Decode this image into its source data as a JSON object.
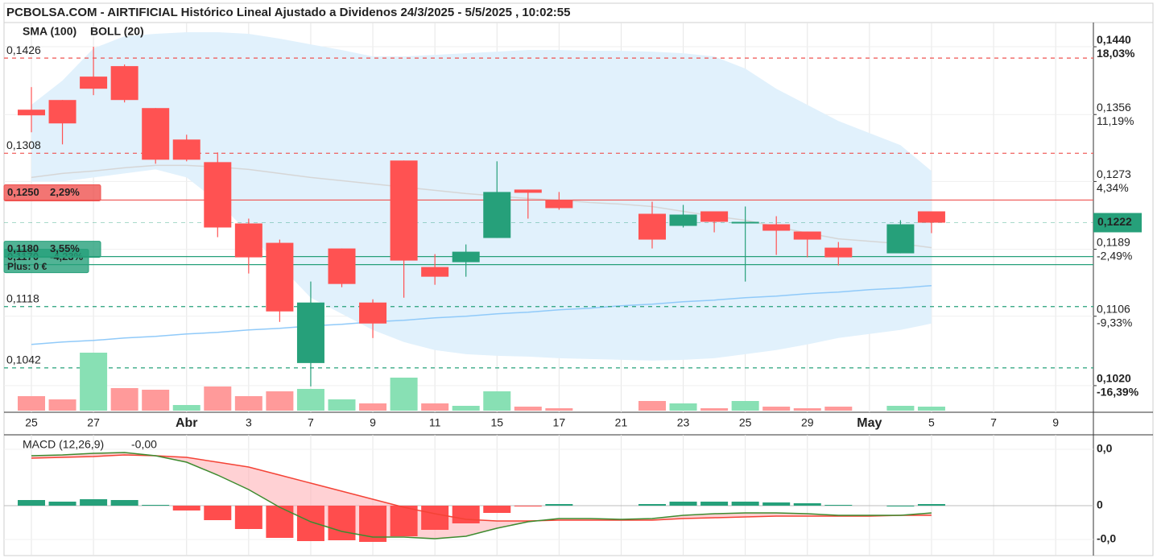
{
  "chart_data": [
    {
      "type": "candlestick",
      "title": "PCBOLSA.COM - AIRTIFICIAL Histórico Lineal Ajustado a Dividenos 24/3/2025 - 5/5/2025 , 10:02:55",
      "categories": [
        "25",
        null,
        "27",
        null,
        null,
        "Abr",
        null,
        "3",
        null,
        "7",
        null,
        "9",
        null,
        "11",
        null,
        "15",
        null,
        "17",
        null,
        "21",
        null,
        "23",
        null,
        "25",
        null,
        "29",
        null,
        "May",
        null,
        "5",
        null,
        "7",
        null,
        "9"
      ],
      "open": [
        0.1362,
        0.1374,
        0.1403,
        0.1416,
        0.1364,
        0.1325,
        0.1297,
        0.1221,
        0.1197,
        0.1048,
        0.119,
        0.1123,
        0.1299,
        0.1167,
        0.1173,
        0.1203,
        0.1263,
        0.125,
        null,
        null,
        0.1233,
        0.1218,
        0.1236,
        0.1221,
        0.122,
        0.1211,
        0.1191,
        null,
        0.1184,
        0.1236,
        null,
        null,
        null,
        null
      ],
      "high": [
        0.139,
        0.1374,
        0.144,
        0.1418,
        0.1364,
        0.1331,
        0.1309,
        0.1227,
        0.1201,
        0.1149,
        0.119,
        0.1127,
        0.1299,
        0.1183,
        0.1195,
        0.1298,
        0.1263,
        0.126,
        null,
        null,
        0.1248,
        0.1244,
        0.1236,
        0.1242,
        0.123,
        0.1211,
        0.1198,
        null,
        0.1225,
        0.1236,
        null,
        null,
        null,
        null
      ],
      "low": [
        0.1334,
        0.1319,
        0.138,
        0.1371,
        0.1295,
        0.1298,
        0.1204,
        0.1159,
        0.1099,
        0.1019,
        0.1142,
        0.1079,
        0.1129,
        0.1145,
        0.1155,
        0.1203,
        0.1227,
        0.1238,
        null,
        null,
        0.119,
        0.1216,
        0.121,
        0.1149,
        0.1182,
        0.1179,
        0.1169,
        null,
        0.1184,
        0.1209,
        null,
        null,
        null,
        null
      ],
      "close": [
        0.1355,
        0.1345,
        0.1388,
        0.1374,
        0.13,
        0.13,
        0.1216,
        0.1179,
        0.1112,
        0.1123,
        0.1146,
        0.1097,
        0.1175,
        0.1155,
        0.1186,
        0.126,
        0.1259,
        0.124,
        null,
        null,
        0.1201,
        0.1232,
        0.1223,
        0.1223,
        0.1212,
        0.1201,
        0.1179,
        null,
        0.122,
        0.1222,
        null,
        null,
        null,
        null
      ],
      "up_color": "#26a07a",
      "down_color": "#ff5252",
      "volume": {
        "values": [
          18,
          14,
          72,
          28,
          26,
          7,
          30,
          18,
          24,
          27,
          14,
          9,
          41,
          9,
          6,
          24,
          5,
          3,
          null,
          null,
          12,
          9,
          3,
          12,
          5,
          3,
          5,
          null,
          6,
          5,
          null,
          null,
          null,
          null
        ],
        "up_color": "#88e0b4",
        "down_color": "#ff9a9a"
      },
      "series": [
        {
          "name": "SMA (100)",
          "color": "#90caf9",
          "values": [
            0.1071,
            0.1074,
            0.1076,
            0.1079,
            0.1081,
            0.1084,
            0.1086,
            0.1089,
            0.1091,
            0.1094,
            0.1096,
            0.1099,
            0.1101,
            0.1104,
            0.1106,
            0.1109,
            0.1111,
            0.1114,
            0.1116,
            0.1119,
            0.1121,
            0.1124,
            0.1126,
            0.1129,
            0.1131,
            0.1134,
            0.1136,
            0.1139,
            0.1141,
            0.1144,
            null,
            null,
            null,
            null
          ]
        },
        {
          "name": "BOLL (20)",
          "color": "#d6d6d6",
          "fill": "#e1f1fc",
          "values": [
            0.1278,
            0.1283,
            0.1286,
            0.129,
            0.1293,
            0.1293,
            0.1291,
            0.1288,
            0.1283,
            0.1278,
            0.1274,
            0.127,
            0.1266,
            0.1262,
            0.1258,
            0.1255,
            0.1252,
            0.125,
            0.1247,
            0.1245,
            0.1242,
            0.1236,
            0.123,
            0.1225,
            0.1217,
            0.1209,
            0.1202,
            0.1199,
            0.1196,
            0.1191,
            null,
            null,
            null,
            null
          ],
          "upper": [
            0.1368,
            0.1398,
            0.1438,
            0.1453,
            0.1456,
            0.1458,
            0.1458,
            0.1456,
            0.145,
            0.1443,
            0.1436,
            0.1428,
            0.1428,
            0.143,
            0.1432,
            0.1434,
            0.1436,
            0.1436,
            0.1435,
            0.1435,
            0.1434,
            0.1432,
            0.1428,
            0.1413,
            0.1388,
            0.1368,
            0.1348,
            0.1333,
            0.1318,
            0.1286,
            null,
            null,
            null,
            null
          ],
          "lower": [
            0.1273,
            0.1273,
            0.1278,
            0.1283,
            0.1288,
            0.1278,
            0.1248,
            0.1209,
            0.1169,
            0.1129,
            0.1109,
            0.1089,
            0.1074,
            0.1064,
            0.1059,
            0.1057,
            0.1056,
            0.1054,
            0.1053,
            0.1052,
            0.1051,
            0.1052,
            0.1054,
            0.1059,
            0.1064,
            0.1071,
            0.1079,
            0.1084,
            0.1089,
            0.1097,
            null,
            null,
            null,
            null
          ]
        }
      ],
      "levels": [
        {
          "value": 0.1426,
          "label": "0,1426",
          "color": "#ef5350",
          "dash": true
        },
        {
          "value": 0.1308,
          "label": "0,1308",
          "color": "#ef5350",
          "dash": true
        },
        {
          "value": 0.125,
          "label": "0,1250",
          "change": "2,29%",
          "color": "#ef5350",
          "text_color": "#ffffff",
          "dash": false
        },
        {
          "value": 0.117,
          "label": "0,1170",
          "change": "-4,23%",
          "note": "Plus: 0 €",
          "color": "#26a07a",
          "text_color": "#1a1a1a",
          "dash": false
        },
        {
          "value": 0.118,
          "label": "0,1180",
          "change": "3,55%",
          "color": "#26a07a",
          "text_color": "#1a1a1a",
          "dash": false
        },
        {
          "value": 0.1118,
          "label": "0,1118",
          "color": "#26a07a",
          "dash": true
        },
        {
          "value": 0.1042,
          "label": "0,1042",
          "color": "#26a07a",
          "dash": true
        }
      ],
      "last": {
        "value": 0.1222,
        "label": "0,1222",
        "color": "#26a07a"
      },
      "ylim": [
        0.0987,
        0.147
      ],
      "yticks": [
        {
          "value": 0.144,
          "label": "0,1440"
        },
        {
          "value": 0.1356,
          "label": "0,1356"
        },
        {
          "value": 0.1273,
          "label": "0,1273"
        },
        {
          "value": 0.1189,
          "label": "0,1189"
        },
        {
          "value": 0.1106,
          "label": "0,1106"
        },
        {
          "value": 0.102,
          "label": "0,1020"
        }
      ],
      "ytick_changes": [
        {
          "value": 18.03,
          "label": "18,03%"
        },
        {
          "value": 11.19,
          "label": "11,19%"
        },
        {
          "value": 4.34,
          "label": "4,34%"
        },
        {
          "value": -2.49,
          "label": "-2,49%"
        },
        {
          "value": -9.33,
          "label": "-9,33%"
        },
        {
          "value": -16.39,
          "label": "-16,39%"
        }
      ],
      "grid": true
    },
    {
      "type": "macd",
      "title": "MACD (12,26,9)",
      "current": "-0,00",
      "macd": {
        "color": "#3d8b2f",
        "values": [
          0.0031,
          0.00315,
          0.00325,
          0.0033,
          0.0031,
          0.0027,
          0.0019,
          0.001,
          -0.0001,
          -0.001,
          -0.0016,
          -0.00195,
          -0.00195,
          -0.00205,
          -0.0019,
          -0.0014,
          -0.001,
          -0.0008,
          -0.0008,
          -0.00085,
          -0.0008,
          -0.0006,
          -0.0005,
          -0.00045,
          -0.00045,
          -0.0005,
          -0.0006,
          -0.0006,
          -0.0006,
          -0.00045,
          null,
          null,
          null,
          null
        ]
      },
      "signal": {
        "color": "#f44336",
        "values": [
          0.00295,
          0.003,
          0.00305,
          0.00315,
          0.0031,
          0.003,
          0.0027,
          0.0024,
          0.0019,
          0.0014,
          0.0009,
          0.0004,
          -0.0001,
          -0.0005,
          -0.00085,
          -0.00095,
          -0.00095,
          -0.0009,
          -0.0009,
          -0.0009,
          -0.0009,
          -0.0008,
          -0.00075,
          -0.0007,
          -0.00065,
          -0.00065,
          -0.00065,
          -0.00065,
          -0.0006,
          -0.0006,
          null,
          null,
          null,
          null
        ]
      },
      "histogram": {
        "up_color": "#26a07a",
        "down_color": "#ff4d4d",
        "values": [
          0.00035,
          0.00025,
          0.0004,
          0.00035,
          5e-05,
          -0.0003,
          -0.0009,
          -0.00145,
          -0.002,
          -0.0022,
          -0.00215,
          -0.00225,
          -0.0019,
          -0.0015,
          -0.0011,
          -0.00045,
          -5e-05,
          0.0001,
          null,
          null,
          0.0001,
          0.00025,
          0.00025,
          0.00025,
          0.0002,
          0.00015,
          5e-05,
          null,
          0,
          0.0001,
          null,
          null,
          null,
          null
        ]
      },
      "fill": "#ffb3b8",
      "ylim": [
        -0.0031,
        0.0044
      ],
      "yticks": [
        {
          "value": 0.0035,
          "label": "0,0"
        },
        0,
        {
          "value": -0.0021,
          "label": "-0,0"
        }
      ]
    }
  ]
}
